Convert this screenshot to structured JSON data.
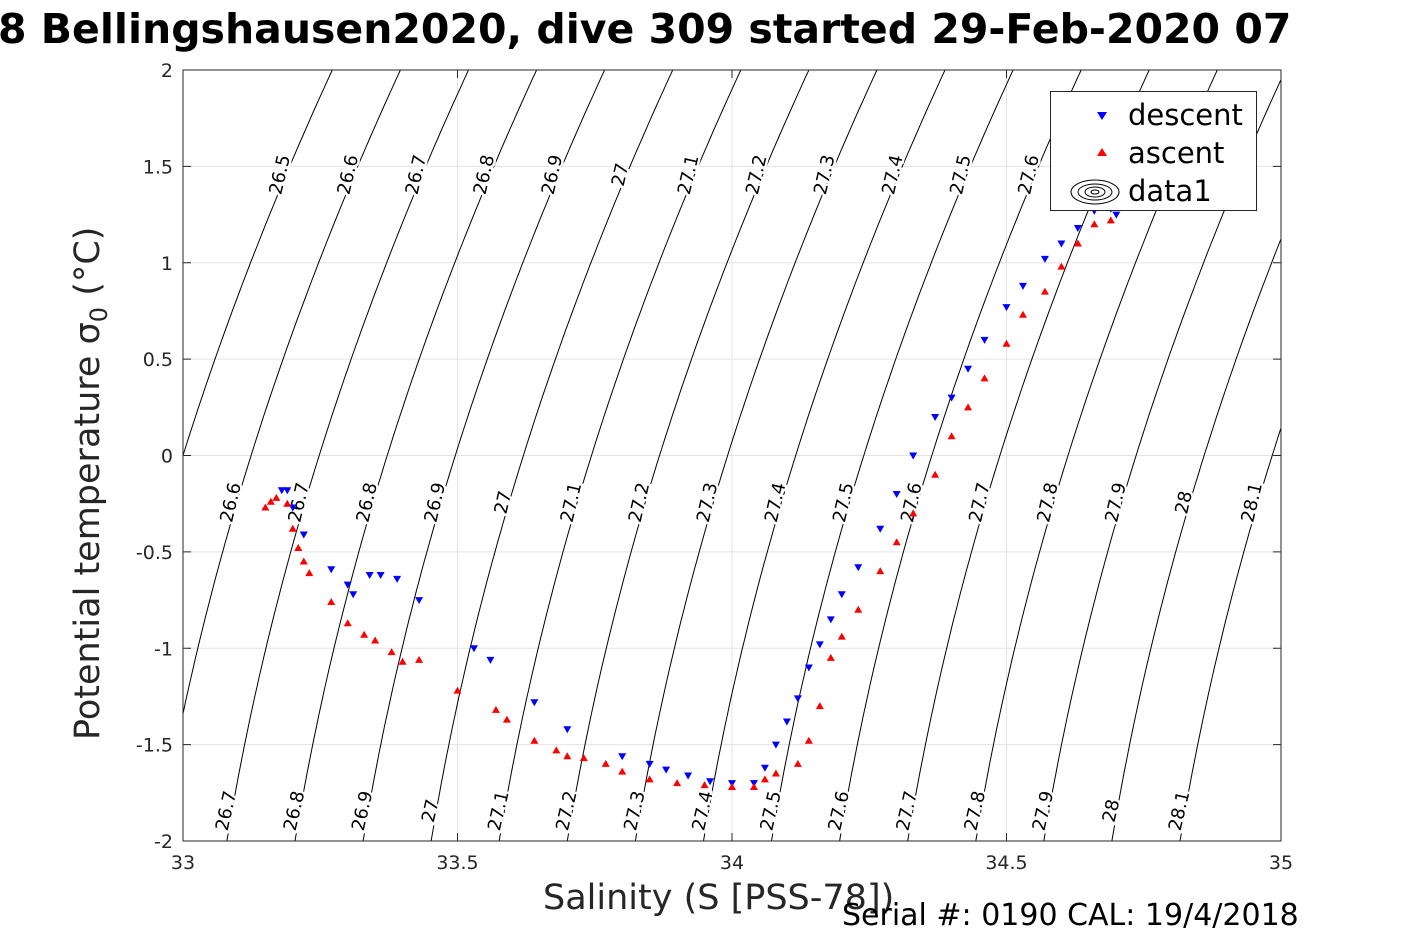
{
  "title": "8 Bellingshausen2020, dive 309 started 29-Feb-2020 07",
  "serial": "Serial #: 0190  CAL: 19/4/2018",
  "chart_data": {
    "type": "scatter",
    "title": "8 Bellingshausen2020, dive 309 started 29-Feb-2020 07",
    "xlabel": "Salinity (S [PSS-78])",
    "ylabel_main": "Potential temperature",
    "ylabel_sigma": "σ",
    "ylabel_sub": "0",
    "ylabel_unit": " (°C)",
    "xlim": [
      33,
      35
    ],
    "ylim": [
      -2,
      2
    ],
    "xticks": [
      33,
      33.5,
      34,
      34.5,
      35
    ],
    "xtick_labels": [
      "33",
      "33.5",
      "34",
      "34.5",
      "35"
    ],
    "yticks": [
      2,
      1.5,
      1,
      0.5,
      0,
      -0.5,
      -1,
      -1.5,
      -2
    ],
    "ytick_labels": [
      "2",
      "1.5",
      "1",
      "0.5",
      "0",
      "-0.5",
      "-1",
      "-1.5",
      "-2"
    ],
    "grid": true,
    "legend": {
      "position": "top-right",
      "entries": [
        "descent",
        "ascent",
        "data1"
      ]
    },
    "series": [
      {
        "name": "descent",
        "marker": "triangle-down",
        "color": "#0000ff",
        "x": [
          33.18,
          33.19,
          33.2,
          33.22,
          33.27,
          33.3,
          33.31,
          33.34,
          33.36,
          33.39,
          33.43,
          33.53,
          33.56,
          33.64,
          33.7,
          33.8,
          33.85,
          33.88,
          33.92,
          33.96,
          34.0,
          34.04,
          34.06,
          34.08,
          34.1,
          34.12,
          34.14,
          34.16,
          34.18,
          34.2,
          34.23,
          34.27,
          34.3,
          34.33,
          34.37,
          34.4,
          34.43,
          34.46,
          34.5,
          34.53,
          34.57,
          34.6,
          34.63,
          34.66,
          34.69,
          34.7
        ],
        "y": [
          -0.18,
          -0.18,
          -0.27,
          -0.41,
          -0.59,
          -0.67,
          -0.72,
          -0.62,
          -0.62,
          -0.64,
          -0.75,
          -1.0,
          -1.06,
          -1.28,
          -1.42,
          -1.56,
          -1.6,
          -1.63,
          -1.66,
          -1.69,
          -1.7,
          -1.7,
          -1.62,
          -1.5,
          -1.38,
          -1.26,
          -1.1,
          -0.98,
          -0.85,
          -0.72,
          -0.58,
          -0.38,
          -0.2,
          0.0,
          0.2,
          0.3,
          0.45,
          0.6,
          0.77,
          0.88,
          1.02,
          1.1,
          1.18,
          1.27,
          1.28,
          1.25
        ]
      },
      {
        "name": "ascent",
        "marker": "triangle-up",
        "color": "#ff0000",
        "x": [
          33.15,
          33.16,
          33.17,
          33.19,
          33.2,
          33.21,
          33.22,
          33.23,
          33.27,
          33.3,
          33.33,
          33.35,
          33.38,
          33.4,
          33.43,
          33.5,
          33.57,
          33.59,
          33.64,
          33.68,
          33.7,
          33.73,
          33.77,
          33.8,
          33.85,
          33.9,
          33.95,
          34.0,
          34.04,
          34.06,
          34.08,
          34.12,
          34.14,
          34.16,
          34.18,
          34.2,
          34.23,
          34.27,
          34.3,
          34.33,
          34.37,
          34.4,
          34.43,
          34.46,
          34.5,
          34.53,
          34.57,
          34.6,
          34.63,
          34.66,
          34.69
        ],
        "y": [
          -0.27,
          -0.24,
          -0.22,
          -0.25,
          -0.38,
          -0.48,
          -0.55,
          -0.61,
          -0.76,
          -0.87,
          -0.93,
          -0.96,
          -1.02,
          -1.07,
          -1.06,
          -1.22,
          -1.32,
          -1.37,
          -1.48,
          -1.53,
          -1.56,
          -1.57,
          -1.6,
          -1.64,
          -1.68,
          -1.7,
          -1.71,
          -1.72,
          -1.72,
          -1.68,
          -1.65,
          -1.6,
          -1.48,
          -1.3,
          -1.05,
          -0.94,
          -0.8,
          -0.6,
          -0.45,
          -0.3,
          -0.1,
          0.1,
          0.25,
          0.4,
          0.58,
          0.73,
          0.85,
          0.98,
          1.1,
          1.2,
          1.22
        ]
      }
    ],
    "density_contours": {
      "name": "data1",
      "levels": [
        26.5,
        26.6,
        26.7,
        26.8,
        26.9,
        27,
        27.1,
        27.2,
        27.3,
        27.4,
        27.5,
        27.6,
        27.7,
        27.8,
        27.9,
        28,
        28.1
      ]
    }
  }
}
